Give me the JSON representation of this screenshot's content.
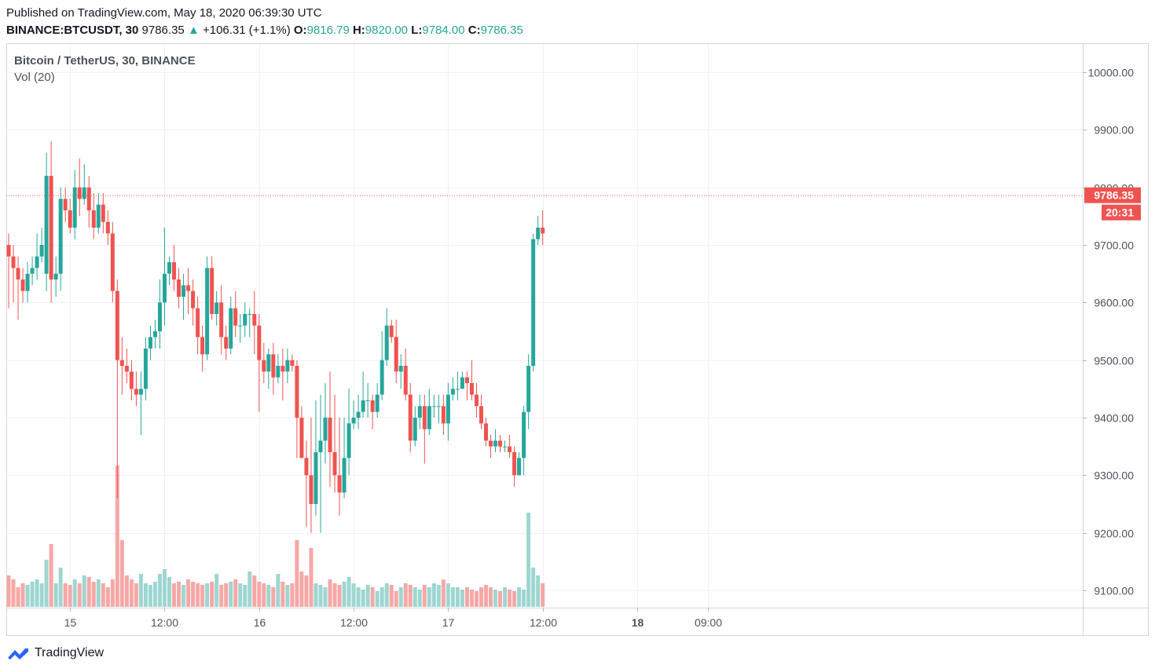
{
  "header": {
    "published": "Published on TradingView.com, May 18, 2020 06:39:30 UTC",
    "symbol": "BINANCE:BTCUSDT, 30",
    "last": "9786.35",
    "change_arrow": "▲",
    "change": "+106.31 (+1.1%)",
    "o_label": "O:",
    "o_value": "9816.79",
    "h_label": "H:",
    "h_value": "9820.00",
    "l_label": "L:",
    "l_value": "9784.00",
    "c_label": "C:",
    "c_value": "9786.35"
  },
  "legend": {
    "title": "Bitcoin / TetherUS, 30, BINANCE",
    "volume": "Vol (20)"
  },
  "price_label": "9786.35",
  "countdown_label": "20:31",
  "footer": {
    "brand": "TradingView",
    "logo_icon": "tradingview-logo-icon"
  },
  "colors": {
    "up": "#26a69a",
    "down": "#ef5350",
    "vol_up": "#9ed6d0",
    "vol_down": "#f6a8a6",
    "grid": "#eef0f3",
    "price_line": "#ef5350",
    "axis_text": "#4c525e"
  },
  "chart_data": {
    "type": "candlestick",
    "title": "Bitcoin / TetherUS, 30, BINANCE",
    "interval": "30",
    "ylim": [
      9050,
      10030
    ],
    "y_ticks": [
      9100,
      9200,
      9300,
      9400,
      9500,
      9600,
      9700,
      9800,
      9900,
      10000
    ],
    "y_tick_labels": [
      "9100.00",
      "9200.00",
      "9300.00",
      "9400.00",
      "9500.00",
      "9600.00",
      "9700.00",
      "9800.00",
      "9900.00",
      "10000.00"
    ],
    "x_ticks": [
      {
        "label": "15",
        "bar": 13,
        "bold": false
      },
      {
        "label": "12:00",
        "bar": 33,
        "bold": false
      },
      {
        "label": "16",
        "bar": 53,
        "bold": false
      },
      {
        "label": "12:00",
        "bar": 73,
        "bold": false
      },
      {
        "label": "17",
        "bar": 93,
        "bold": false
      },
      {
        "label": "12:00",
        "bar": 113,
        "bold": false
      },
      {
        "label": "18",
        "bar": 133,
        "bold": true
      },
      {
        "label": "09:00",
        "bar": 148,
        "bold": false
      }
    ],
    "last_price": 9786.35,
    "grid": true,
    "candles": [
      [
        9700,
        9680,
        9720,
        9590
      ],
      [
        9680,
        9660,
        9700,
        9600
      ],
      [
        9660,
        9640,
        9680,
        9570
      ],
      [
        9640,
        9620,
        9660,
        9600
      ],
      [
        9620,
        9650,
        9670,
        9600
      ],
      [
        9650,
        9660,
        9680,
        9630
      ],
      [
        9660,
        9680,
        9720,
        9640
      ],
      [
        9680,
        9700,
        9730,
        9670
      ],
      [
        9650,
        9820,
        9860,
        9620
      ],
      [
        9820,
        9640,
        9880,
        9600
      ],
      [
        9640,
        9650,
        9680,
        9610
      ],
      [
        9650,
        9780,
        9800,
        9620
      ],
      [
        9780,
        9760,
        9800,
        9740
      ],
      [
        9760,
        9730,
        9780,
        9720
      ],
      [
        9730,
        9800,
        9830,
        9710
      ],
      [
        9800,
        9780,
        9850,
        9750
      ],
      [
        9780,
        9800,
        9840,
        9770
      ],
      [
        9800,
        9760,
        9820,
        9730
      ],
      [
        9760,
        9730,
        9790,
        9710
      ],
      [
        9730,
        9770,
        9790,
        9720
      ],
      [
        9770,
        9740,
        9790,
        9720
      ],
      [
        9740,
        9720,
        9760,
        9700
      ],
      [
        9720,
        9620,
        9740,
        9600
      ],
      [
        9620,
        9500,
        9640,
        9260
      ],
      [
        9500,
        9490,
        9540,
        9440
      ],
      [
        9490,
        9480,
        9520,
        9460
      ],
      [
        9480,
        9450,
        9500,
        9430
      ],
      [
        9450,
        9440,
        9480,
        9420
      ],
      [
        9440,
        9450,
        9480,
        9370
      ],
      [
        9450,
        9520,
        9540,
        9430
      ],
      [
        9520,
        9540,
        9560,
        9500
      ],
      [
        9540,
        9550,
        9570,
        9520
      ],
      [
        9550,
        9600,
        9640,
        9520
      ],
      [
        9600,
        9650,
        9730,
        9560
      ],
      [
        9650,
        9670,
        9680,
        9630
      ],
      [
        9670,
        9640,
        9700,
        9620
      ],
      [
        9640,
        9610,
        9660,
        9590
      ],
      [
        9610,
        9630,
        9650,
        9570
      ],
      [
        9630,
        9620,
        9660,
        9580
      ],
      [
        9620,
        9590,
        9640,
        9560
      ],
      [
        9590,
        9540,
        9610,
        9510
      ],
      [
        9540,
        9510,
        9560,
        9480
      ],
      [
        9510,
        9660,
        9680,
        9500
      ],
      [
        9660,
        9580,
        9680,
        9570
      ],
      [
        9580,
        9600,
        9620,
        9560
      ],
      [
        9600,
        9540,
        9630,
        9510
      ],
      [
        9540,
        9520,
        9560,
        9500
      ],
      [
        9520,
        9590,
        9610,
        9510
      ],
      [
        9590,
        9560,
        9620,
        9540
      ],
      [
        9560,
        9560,
        9580,
        9530
      ],
      [
        9560,
        9580,
        9600,
        9540
      ],
      [
        9580,
        9580,
        9590,
        9540
      ],
      [
        9580,
        9560,
        9620,
        9510
      ],
      [
        9560,
        9500,
        9580,
        9410
      ],
      [
        9500,
        9480,
        9530,
        9460
      ],
      [
        9480,
        9510,
        9520,
        9450
      ],
      [
        9510,
        9470,
        9530,
        9440
      ],
      [
        9470,
        9490,
        9510,
        9460
      ],
      [
        9490,
        9480,
        9520,
        9430
      ],
      [
        9480,
        9500,
        9520,
        9460
      ],
      [
        9500,
        9490,
        9510,
        9480
      ],
      [
        9490,
        9400,
        9500,
        9330
      ],
      [
        9400,
        9330,
        9420,
        9330
      ],
      [
        9330,
        9300,
        9360,
        9210
      ],
      [
        9300,
        9250,
        9400,
        9200
      ],
      [
        9250,
        9340,
        9430,
        9230
      ],
      [
        9340,
        9360,
        9440,
        9200
      ],
      [
        9360,
        9400,
        9460,
        9320
      ],
      [
        9400,
        9340,
        9480,
        9280
      ],
      [
        9340,
        9300,
        9440,
        9270
      ],
      [
        9300,
        9270,
        9400,
        9230
      ],
      [
        9270,
        9330,
        9400,
        9260
      ],
      [
        9330,
        9390,
        9450,
        9300
      ],
      [
        9390,
        9400,
        9430,
        9380
      ],
      [
        9400,
        9410,
        9440,
        9380
      ],
      [
        9410,
        9430,
        9480,
        9400
      ],
      [
        9430,
        9430,
        9460,
        9400
      ],
      [
        9430,
        9410,
        9440,
        9380
      ],
      [
        9410,
        9440,
        9460,
        9400
      ],
      [
        9440,
        9500,
        9550,
        9430
      ],
      [
        9500,
        9560,
        9590,
        9490
      ],
      [
        9560,
        9540,
        9570,
        9530
      ],
      [
        9540,
        9480,
        9570,
        9460
      ],
      [
        9480,
        9490,
        9510,
        9450
      ],
      [
        9490,
        9440,
        9520,
        9430
      ],
      [
        9440,
        9360,
        9460,
        9340
      ],
      [
        9360,
        9400,
        9420,
        9350
      ],
      [
        9400,
        9420,
        9440,
        9380
      ],
      [
        9420,
        9380,
        9440,
        9320
      ],
      [
        9380,
        9420,
        9450,
        9370
      ],
      [
        9420,
        9420,
        9440,
        9400
      ],
      [
        9420,
        9420,
        9440,
        9390
      ],
      [
        9420,
        9390,
        9440,
        9370
      ],
      [
        9390,
        9440,
        9460,
        9360
      ],
      [
        9440,
        9450,
        9470,
        9430
      ],
      [
        9450,
        9450,
        9480,
        9430
      ],
      [
        9450,
        9470,
        9480,
        9460
      ],
      [
        9470,
        9460,
        9480,
        9430
      ],
      [
        9460,
        9440,
        9500,
        9430
      ],
      [
        9440,
        9420,
        9460,
        9400
      ],
      [
        9420,
        9390,
        9440,
        9380
      ],
      [
        9390,
        9360,
        9400,
        9350
      ],
      [
        9360,
        9350,
        9370,
        9330
      ],
      [
        9350,
        9360,
        9380,
        9340
      ],
      [
        9360,
        9350,
        9370,
        9340
      ],
      [
        9350,
        9350,
        9360,
        9340
      ],
      [
        9350,
        9340,
        9370,
        9330
      ],
      [
        9340,
        9300,
        9350,
        9280
      ],
      [
        9300,
        9330,
        9340,
        9300
      ],
      [
        9330,
        9410,
        9420,
        9300
      ],
      [
        9410,
        9490,
        9510,
        9380
      ],
      [
        9490,
        9710,
        9720,
        9480
      ],
      [
        9710,
        9730,
        9750,
        9700
      ],
      [
        9730,
        9720,
        9760,
        9700
      ]
    ],
    "note_candles": "Each candle is [open, close, high, low] in USDT; bars are 30-minute intervals starting early on May 14.",
    "volumes": [
      40,
      35,
      25,
      30,
      28,
      32,
      35,
      30,
      60,
      80,
      30,
      50,
      30,
      28,
      35,
      30,
      40,
      38,
      32,
      35,
      30,
      25,
      35,
      180,
      85,
      40,
      35,
      30,
      42,
      30,
      28,
      32,
      42,
      48,
      38,
      30,
      32,
      28,
      35,
      32,
      30,
      28,
      30,
      32,
      42,
      28,
      30,
      32,
      35,
      30,
      28,
      45,
      40,
      32,
      30,
      28,
      25,
      42,
      32,
      28,
      30,
      85,
      45,
      40,
      75,
      30,
      28,
      25,
      35,
      30,
      28,
      32,
      38,
      30,
      25,
      22,
      28,
      25,
      20,
      25,
      30,
      28,
      20,
      25,
      30,
      28,
      25,
      22,
      28,
      25,
      30,
      28,
      35,
      30,
      25,
      25,
      22,
      25,
      22,
      20,
      25,
      28,
      25,
      22,
      20,
      25,
      22,
      20,
      25,
      22,
      120,
      50,
      40,
      30
    ],
    "note_volumes": "Relative volume units (axis not labeled)."
  }
}
